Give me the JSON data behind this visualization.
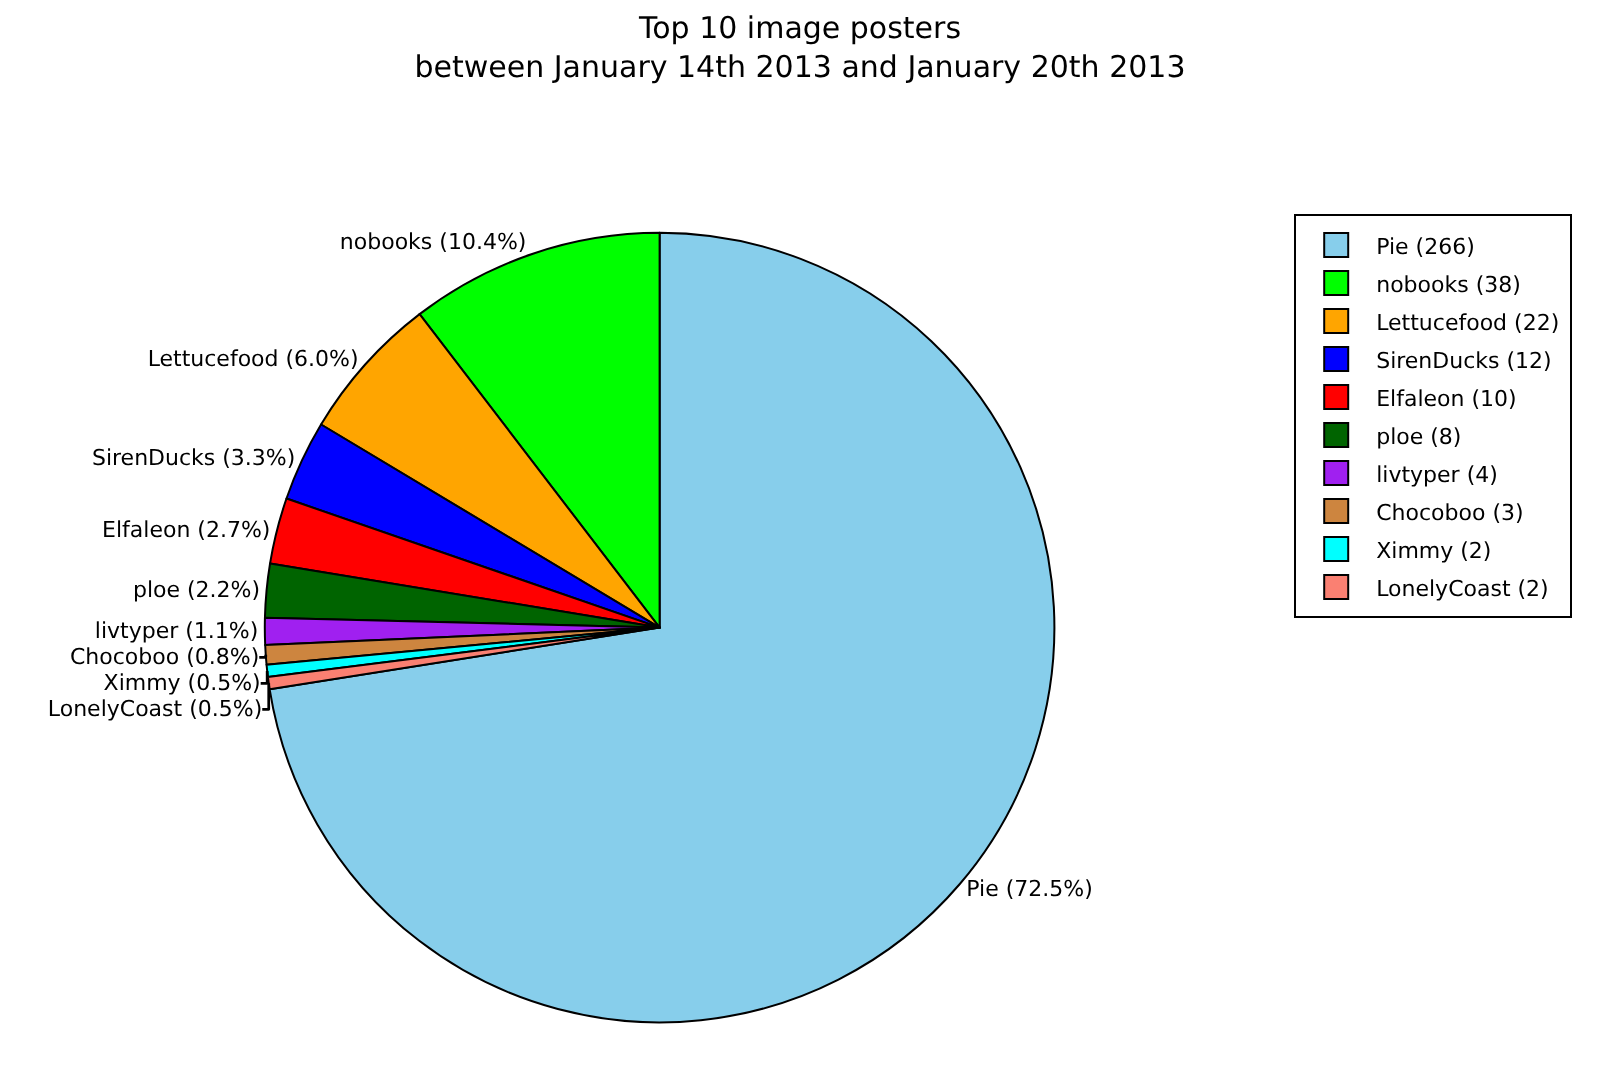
{
  "chart_data": {
    "type": "pie",
    "title": "Top 10 image posters\nbetween January 14th 2013 and January 20th 2013",
    "categories": [
      "Pie (266)",
      "nobooks (38)",
      "Lettucefood (22)",
      "SirenDucks (12)",
      "Elfaleon (10)",
      "ploe (8)",
      "livtyper (4)",
      "Chocoboo (3)",
      "Ximmy (2)",
      "LonelyCoast (2)"
    ],
    "values": [
      72.5,
      10.4,
      6.0,
      3.3,
      2.7,
      2.2,
      1.1,
      0.8,
      0.5,
      0.5
    ],
    "value_labels": [
      "Pie (72.5%)",
      "nobooks (10.4%)",
      "Lettucefood (6.0%)",
      "SirenDucks (3.3%)",
      "Elfaleon (2.7%)",
      "ploe (2.2%)",
      "livtyper (1.1%)",
      "Chocoboo (0.8%)",
      "Ximmy (0.5%)",
      "LonelyCoast (0.5%)"
    ],
    "colors": [
      "#87ceeb",
      "#00ff00",
      "#ffa500",
      "#0000ff",
      "#ff0000",
      "#006400",
      "#a020f0",
      "#cd853f",
      "#00ffff",
      "#fa8072"
    ],
    "legend": "top right"
  }
}
